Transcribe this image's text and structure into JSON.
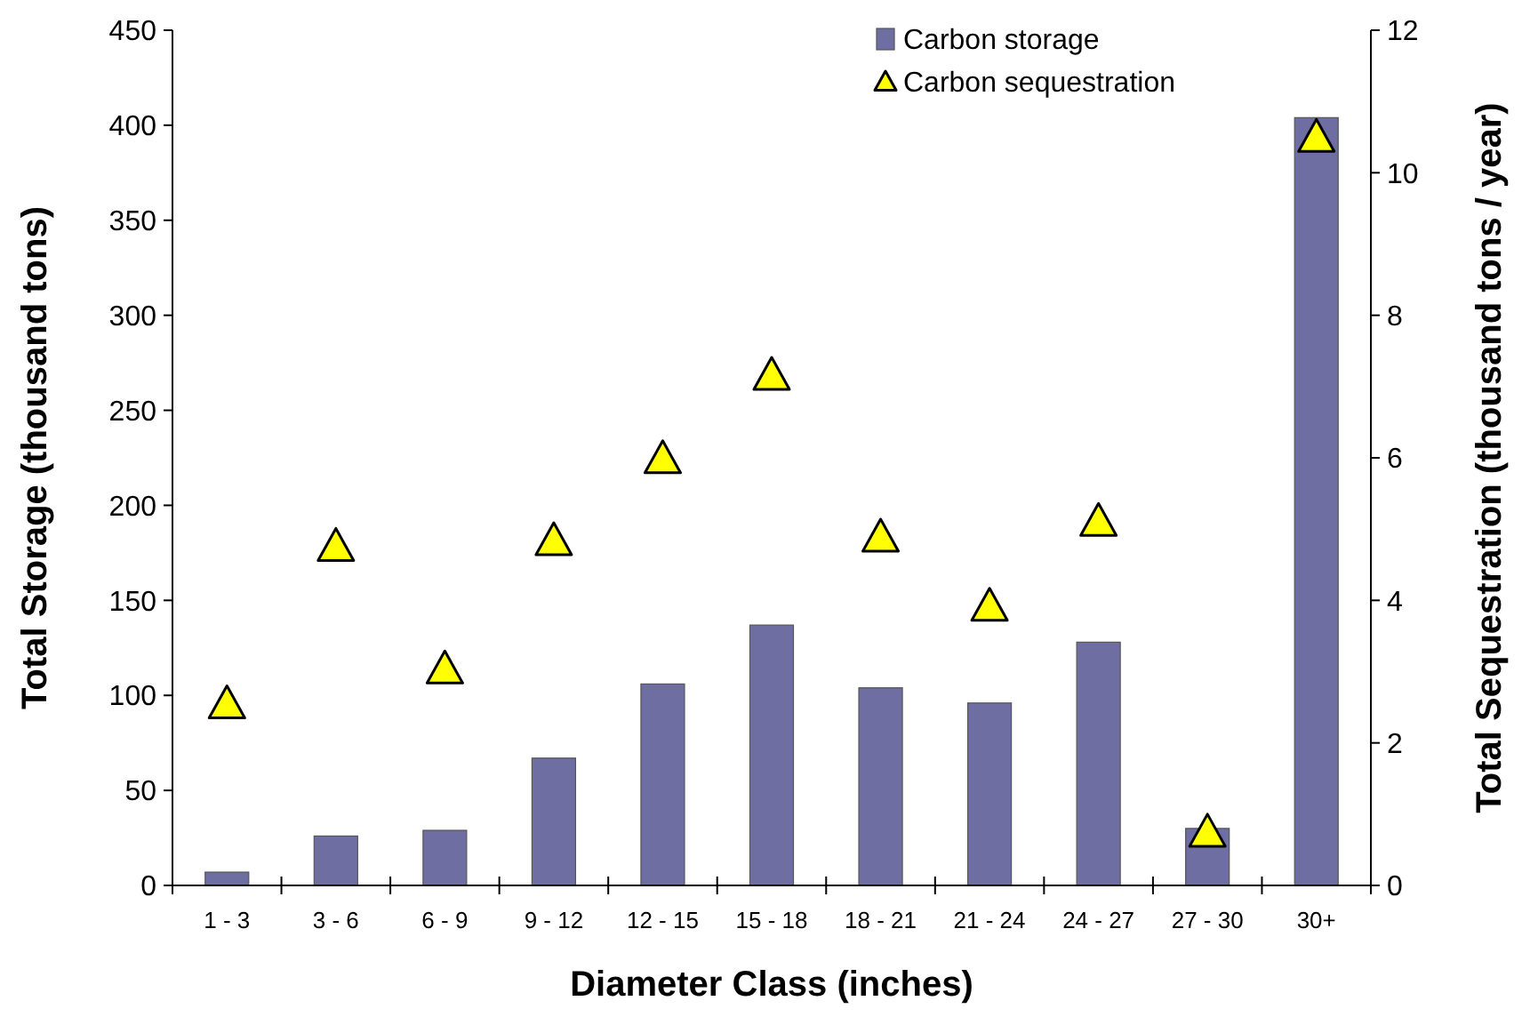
{
  "chart_data": {
    "type": "bar",
    "xlabel": "Diameter Class (inches)",
    "ylabel": "Total Storage (thousand tons)",
    "y2label": "Total Sequestration (thousand tons / year)",
    "categories": [
      "1 - 3",
      "3 - 6",
      "6 - 9",
      "9 - 12",
      "12 - 15",
      "15 - 18",
      "18 - 21",
      "21 - 24",
      "24 - 27",
      "27 - 30",
      "30+"
    ],
    "series": [
      {
        "name": "Carbon storage",
        "color": "#6e6ea3",
        "values": [
          7,
          26,
          29,
          67,
          106,
          137,
          104,
          96,
          128,
          30,
          404
        ]
      },
      {
        "name": "Carbon sequestration",
        "type": "scatter",
        "axis": "y2",
        "marker": "triangle",
        "color": "#ffff00",
        "values": [
          2.55,
          4.76,
          3.04,
          4.84,
          5.99,
          7.16,
          4.89,
          3.92,
          5.11,
          0.75,
          10.5
        ]
      }
    ],
    "ylim": [
      0,
      450
    ],
    "yticks": [
      0,
      50,
      100,
      150,
      200,
      250,
      300,
      350,
      400,
      450
    ],
    "y2lim": [
      0,
      12
    ],
    "y2ticks": [
      0,
      2,
      4,
      6,
      8,
      10,
      12
    ],
    "grid": false,
    "legend": "top right"
  }
}
